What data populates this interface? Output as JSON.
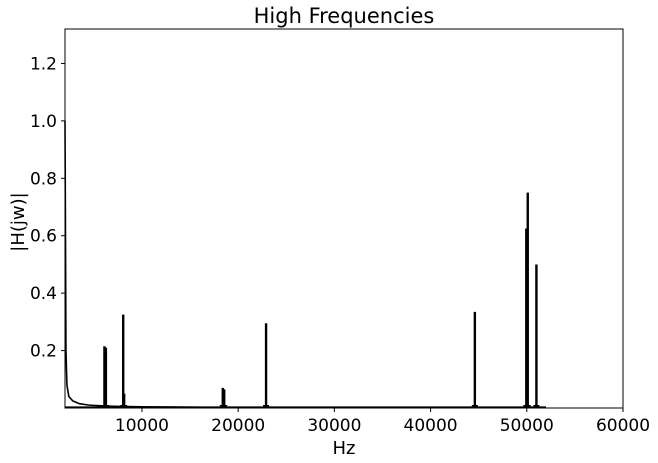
{
  "chart_data": {
    "type": "line",
    "title": "High Frequencies",
    "xlabel": "Hz",
    "ylabel": "|H(jw)|",
    "xlim": [
      2000,
      60000
    ],
    "ylim": [
      0,
      1.32
    ],
    "xticks": [
      {
        "value": 10000,
        "label": "10000"
      },
      {
        "value": 20000,
        "label": "20000"
      },
      {
        "value": 30000,
        "label": "30000"
      },
      {
        "value": 40000,
        "label": "40000"
      },
      {
        "value": 50000,
        "label": "50000"
      },
      {
        "value": 60000,
        "label": "60000"
      }
    ],
    "yticks": [
      {
        "value": 0.2,
        "label": "0.2"
      },
      {
        "value": 0.4,
        "label": "0.4"
      },
      {
        "value": 0.6,
        "label": "0.6"
      },
      {
        "value": 0.8,
        "label": "0.8"
      },
      {
        "value": 1.0,
        "label": "1.0"
      },
      {
        "value": 1.2,
        "label": "1.2"
      }
    ],
    "grid": false,
    "series": [
      {
        "color": "#000000",
        "decay": [
          {
            "x": 2000,
            "y": 1.0
          },
          {
            "x": 2050,
            "y": 0.6
          },
          {
            "x": 2100,
            "y": 0.2
          },
          {
            "x": 2200,
            "y": 0.08
          },
          {
            "x": 2400,
            "y": 0.04
          },
          {
            "x": 2800,
            "y": 0.025
          },
          {
            "x": 3500,
            "y": 0.015
          },
          {
            "x": 4500,
            "y": 0.01
          },
          {
            "x": 5500,
            "y": 0.008
          },
          {
            "x": 7000,
            "y": 0.006
          },
          {
            "x": 10000,
            "y": 0.004
          },
          {
            "x": 15000,
            "y": 0.003
          },
          {
            "x": 18000,
            "y": 0.002
          }
        ],
        "peaks": [
          {
            "x": 6100,
            "y": 0.215
          },
          {
            "x": 6250,
            "y": 0.21
          },
          {
            "x": 8050,
            "y": 0.325
          },
          {
            "x": 8150,
            "y": 0.05
          },
          {
            "x": 18400,
            "y": 0.07
          },
          {
            "x": 18550,
            "y": 0.065
          },
          {
            "x": 22900,
            "y": 0.295
          },
          {
            "x": 44600,
            "y": 0.335
          },
          {
            "x": 49950,
            "y": 0.625
          },
          {
            "x": 50100,
            "y": 0.75
          },
          {
            "x": 51000,
            "y": 0.5
          }
        ]
      }
    ]
  }
}
